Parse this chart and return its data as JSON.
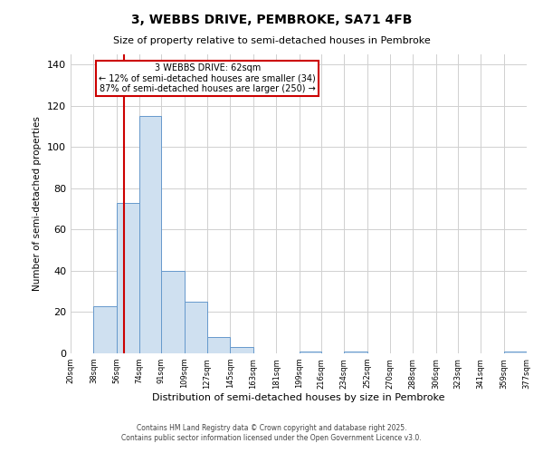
{
  "title": "3, WEBBS DRIVE, PEMBROKE, SA71 4FB",
  "subtitle": "Size of property relative to semi-detached houses in Pembroke",
  "xlabel": "Distribution of semi-detached houses by size in Pembroke",
  "ylabel": "Number of semi-detached properties",
  "bin_edges": [
    20,
    38,
    56,
    74,
    91,
    109,
    127,
    145,
    163,
    181,
    199,
    216,
    234,
    252,
    270,
    288,
    306,
    323,
    341,
    359,
    377
  ],
  "bin_counts": [
    0,
    23,
    73,
    115,
    40,
    25,
    8,
    3,
    0,
    0,
    1,
    0,
    1,
    0,
    0,
    0,
    0,
    0,
    0,
    1
  ],
  "tick_labels": [
    "20sqm",
    "38sqm",
    "56sqm",
    "74sqm",
    "91sqm",
    "109sqm",
    "127sqm",
    "145sqm",
    "163sqm",
    "181sqm",
    "199sqm",
    "216sqm",
    "234sqm",
    "252sqm",
    "270sqm",
    "288sqm",
    "306sqm",
    "323sqm",
    "341sqm",
    "359sqm",
    "377sqm"
  ],
  "bar_color": "#cfe0f0",
  "bar_edge_color": "#6699cc",
  "property_value": 62,
  "vline_color": "#cc0000",
  "annotation_title": "3 WEBBS DRIVE: 62sqm",
  "annotation_line1": "← 12% of semi-detached houses are smaller (34)",
  "annotation_line2": "87% of semi-detached houses are larger (250) →",
  "annotation_box_edge": "#cc0000",
  "ylim": [
    0,
    145
  ],
  "yticks": [
    0,
    20,
    40,
    60,
    80,
    100,
    120,
    140
  ],
  "background_color": "#ffffff",
  "grid_color": "#d0d0d0",
  "footer1": "Contains HM Land Registry data © Crown copyright and database right 2025.",
  "footer2": "Contains public sector information licensed under the Open Government Licence v3.0."
}
